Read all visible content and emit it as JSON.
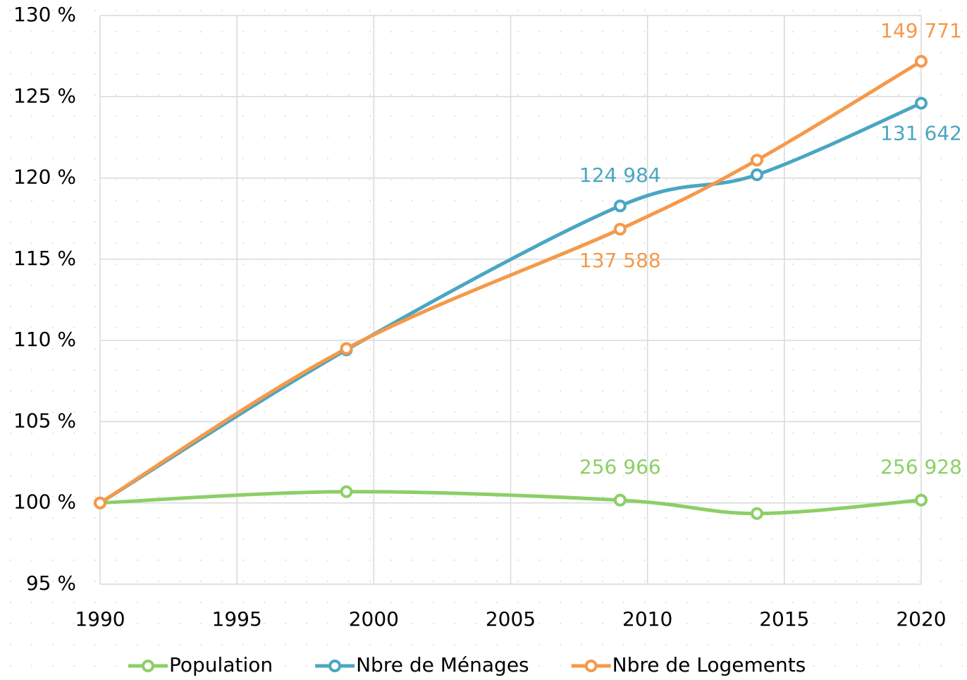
{
  "chart_data": {
    "type": "line",
    "x": [
      1990,
      1999,
      2009,
      2014,
      2020
    ],
    "series": [
      {
        "name": "Population",
        "color": "#8ccf66",
        "values": [
          100,
          100.69,
          100.17,
          99.35,
          100.17
        ]
      },
      {
        "name": "Nbre de Ménages",
        "color": "#4aa6c2",
        "values": [
          100,
          109.42,
          118.28,
          120.2,
          124.6
        ]
      },
      {
        "name": "Nbre de Logements",
        "color": "#f5994a",
        "values": [
          100,
          109.5,
          116.85,
          121.1,
          127.18
        ]
      }
    ],
    "annotations": [
      "256 966",
      "256 928",
      "124 984",
      "131 642",
      "137 588",
      "149 771"
    ],
    "xlim": [
      1990,
      2020
    ],
    "xticks": [
      1990,
      1995,
      2000,
      2005,
      2010,
      2015,
      2020
    ],
    "ylim": [
      95,
      130
    ],
    "yticks": [
      {
        "value": 95,
        "label": "95 %"
      },
      {
        "value": 100,
        "label": "100 %"
      },
      {
        "value": 105,
        "label": "105 %"
      },
      {
        "value": 110,
        "label": "110 %"
      },
      {
        "value": 115,
        "label": "115 %"
      },
      {
        "value": 120,
        "label": "120 %"
      },
      {
        "value": 125,
        "label": "125 %"
      },
      {
        "value": 130,
        "label": "130 %"
      }
    ],
    "grid": true,
    "legend": "bottom"
  }
}
